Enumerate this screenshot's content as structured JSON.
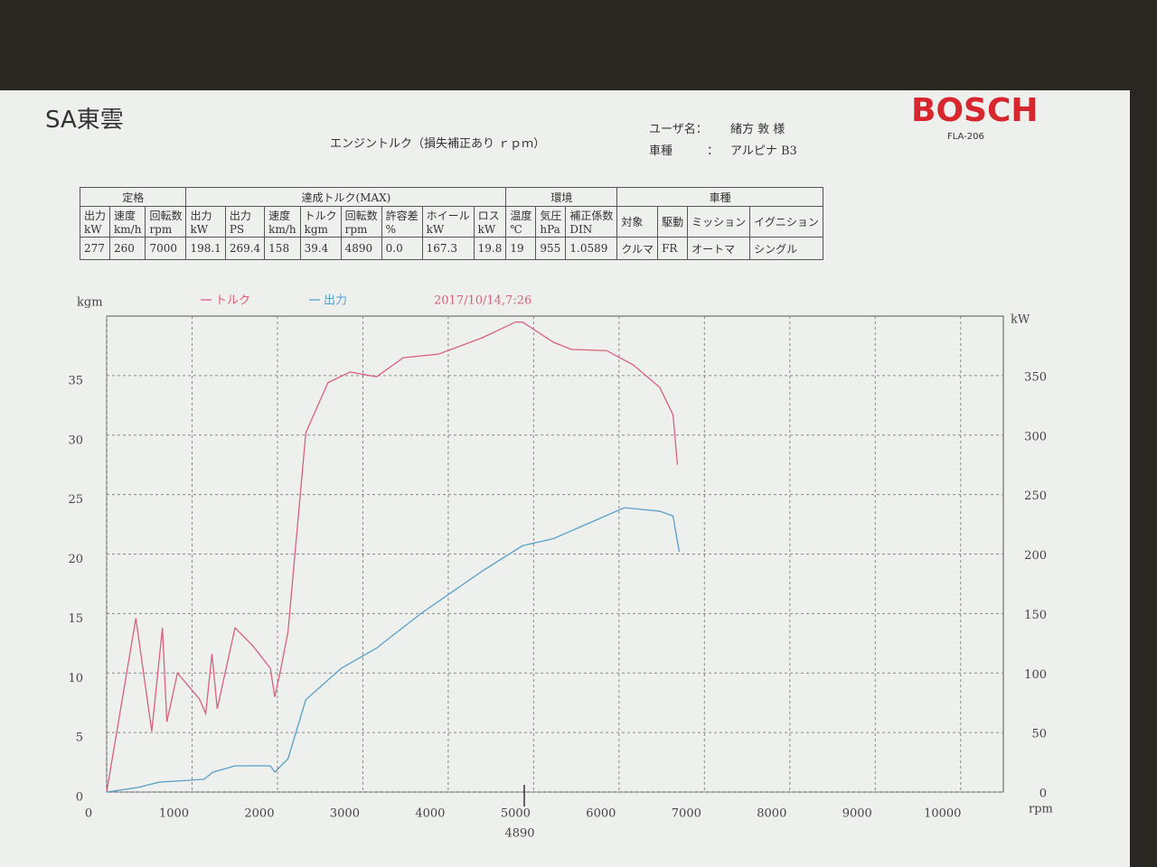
{
  "header": {
    "shop": "SA東雲",
    "title": "エンジントルク（損失補正あり ｒｐｍ）",
    "user_label": "ユーザ名：",
    "user": "緒方 敦 様",
    "model_label": "車種",
    "model_sep": "：",
    "model": "アルピナ B3",
    "brand": "BOSCH",
    "device": "FLA-206"
  },
  "table": {
    "groups": [
      {
        "label": "定格",
        "span": 3
      },
      {
        "label": "達成トルク(MAX)",
        "span": 8
      },
      {
        "label": "環境",
        "span": 3
      },
      {
        "label": "車種",
        "span": 4
      }
    ],
    "headers": [
      [
        "出力",
        "kW"
      ],
      [
        "速度",
        "km/h"
      ],
      [
        "回転数",
        "rpm"
      ],
      [
        "出力",
        "kW"
      ],
      [
        "出力",
        "PS"
      ],
      [
        "速度",
        "km/h"
      ],
      [
        "トルク",
        "kgm"
      ],
      [
        "回転数",
        "rpm"
      ],
      [
        "許容差",
        "%"
      ],
      [
        "ホイール",
        "kW"
      ],
      [
        "ロス",
        "kW"
      ],
      [
        "温度",
        "℃"
      ],
      [
        "気圧",
        "hPa"
      ],
      [
        "補正係数",
        "DIN"
      ],
      [
        "対象"
      ],
      [
        "駆動"
      ],
      [
        "ミッション"
      ],
      [
        "イグニション"
      ]
    ],
    "values": [
      "277",
      "260",
      "7000",
      "198.1",
      "269.4",
      "158",
      "39.4",
      "4890",
      "0.0",
      "167.3",
      "19.8",
      "19",
      "955",
      "1.0589",
      "クルマ",
      "FR",
      "オートマ",
      "シングル"
    ]
  },
  "chart_data": {
    "type": "line",
    "ylabel": "kgm",
    "y2label": "kW",
    "xlabel": "rpm",
    "annotation": "2017/10/14,7:26",
    "marker_x": 4890,
    "xlim": [
      0,
      10500
    ],
    "xticks": [
      0,
      1000,
      2000,
      3000,
      4000,
      5000,
      6000,
      7000,
      8000,
      9000,
      10000
    ],
    "ylim": [
      0,
      40
    ],
    "yticks": [
      0,
      5,
      10,
      15,
      20,
      25,
      30,
      35
    ],
    "y2lim": [
      0,
      400
    ],
    "y2ticks": [
      0,
      50,
      100,
      150,
      200,
      250,
      300,
      350
    ],
    "grid": true,
    "series": [
      {
        "name": "トルク",
        "color": "#d9607a",
        "x": [
          0,
          342,
          528,
          653,
          705,
          829,
          1088,
          1160,
          1233,
          1295,
          1503,
          1710,
          1917,
          1969,
          2041,
          2124,
          2332,
          2591,
          2850,
          3161,
          3472,
          3886,
          4404,
          4788,
          4870,
          5233,
          5440,
          5855,
          6166,
          6477,
          6632,
          6684
        ],
        "values": [
          0,
          14.6,
          5.1,
          13.8,
          5.9,
          10,
          7.8,
          6.6,
          11.6,
          7,
          13.8,
          12.3,
          10.4,
          8,
          10.4,
          13.5,
          30.2,
          34.4,
          35.3,
          34.9,
          36.5,
          36.8,
          38.2,
          39.5,
          39.5,
          37.8,
          37.2,
          37.1,
          35.9,
          34,
          31.7,
          27.5
        ]
      },
      {
        "name": "出力",
        "color": "#5aa0c8",
        "axis": "y2",
        "x": [
          0,
          363,
          622,
          777,
          1140,
          1244,
          1503,
          1917,
          1969,
          2124,
          2332,
          2746,
          3161,
          3679,
          4404,
          4870,
          5233,
          5648,
          6062,
          6477,
          6632,
          6705
        ],
        "values": [
          0,
          3.8,
          8.4,
          9,
          10.7,
          16.7,
          22,
          22,
          16.7,
          28,
          77.6,
          104,
          121,
          150,
          186,
          207,
          213,
          226,
          239,
          236,
          232,
          202
        ]
      }
    ]
  }
}
